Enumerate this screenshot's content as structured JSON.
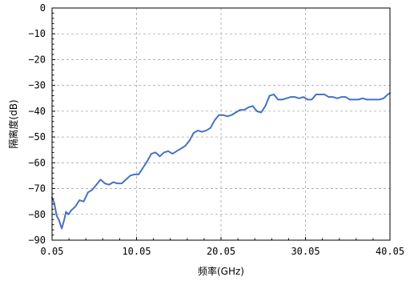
{
  "colors": {
    "series": "#4472c4",
    "grid": "#a6a6a6",
    "frame": "#000000",
    "background": "#ffffff"
  },
  "chart_data": {
    "type": "line",
    "title": "",
    "xlabel": "频率(GHz)",
    "ylabel": "隔离度(dB)",
    "xlim": [
      0.05,
      40.05
    ],
    "ylim": [
      -90,
      0
    ],
    "xticks": [
      0.05,
      10.05,
      20.05,
      30.05,
      40.05
    ],
    "xtick_labels": [
      "0.05",
      "10.05",
      "20.05",
      "30.05",
      "40.05"
    ],
    "yticks": [
      0,
      -10,
      -20,
      -30,
      -40,
      -50,
      -60,
      -70,
      -80,
      -90
    ],
    "ytick_labels": [
      "0",
      "−10",
      "−20",
      "−30",
      "−40",
      "−50",
      "−60",
      "−70",
      "−80",
      "−90"
    ],
    "grid": true,
    "grid_style": "dashed",
    "series": [
      {
        "x": [
          0.05,
          0.3,
          0.6,
          0.9,
          1.2,
          1.5,
          1.7,
          2.0,
          2.3,
          2.8,
          3.3,
          3.8,
          4.3,
          4.8,
          5.3,
          5.8,
          6.3,
          6.8,
          7.3,
          7.8,
          8.3,
          8.8,
          9.3,
          9.8,
          10.3,
          10.8,
          11.3,
          11.8,
          12.3,
          12.8,
          13.3,
          13.8,
          14.3,
          14.8,
          15.3,
          15.8,
          16.3,
          16.8,
          17.3,
          17.8,
          18.3,
          18.8,
          19.3,
          19.8,
          20.3,
          20.8,
          21.3,
          21.8,
          22.3,
          22.8,
          23.3,
          23.8,
          24.3,
          24.8,
          25.3,
          25.8,
          26.3,
          26.8,
          27.3,
          27.8,
          28.3,
          28.8,
          29.3,
          29.8,
          30.3,
          30.8,
          31.3,
          31.8,
          32.3,
          32.8,
          33.3,
          33.8,
          34.3,
          34.8,
          35.3,
          35.8,
          36.3,
          36.8,
          37.3,
          37.8,
          38.3,
          38.8,
          39.3,
          39.8,
          40.05
        ],
        "y": [
          -73.5,
          -75.5,
          -80.5,
          -82.5,
          -85.5,
          -82,
          -79,
          -80,
          -78.5,
          -77,
          -74.5,
          -75,
          -71.5,
          -70.5,
          -68.5,
          -66.5,
          -68,
          -68.5,
          -67.5,
          -68,
          -68,
          -66.5,
          -65,
          -64.5,
          -64.5,
          -62,
          -59.5,
          -56.5,
          -56,
          -57.5,
          -56,
          -55.5,
          -56.5,
          -55.5,
          -54.5,
          -53.5,
          -51.5,
          -48.5,
          -47.5,
          -48,
          -47.5,
          -46.5,
          -43.5,
          -41.5,
          -41.5,
          -42,
          -41.5,
          -40.5,
          -39.5,
          -39.5,
          -38.5,
          -38,
          -40,
          -40.5,
          -38,
          -34,
          -33.5,
          -35.5,
          -35.5,
          -35,
          -34.5,
          -34.5,
          -35,
          -34.5,
          -35.5,
          -35.5,
          -33.5,
          -33.5,
          -33.5,
          -34.5,
          -34.5,
          -35,
          -34.5,
          -34.5,
          -35.5,
          -35.5,
          -35.5,
          -35,
          -35.5,
          -35.5,
          -35.5,
          -35.5,
          -35,
          -33.5,
          -33
        ]
      }
    ]
  }
}
